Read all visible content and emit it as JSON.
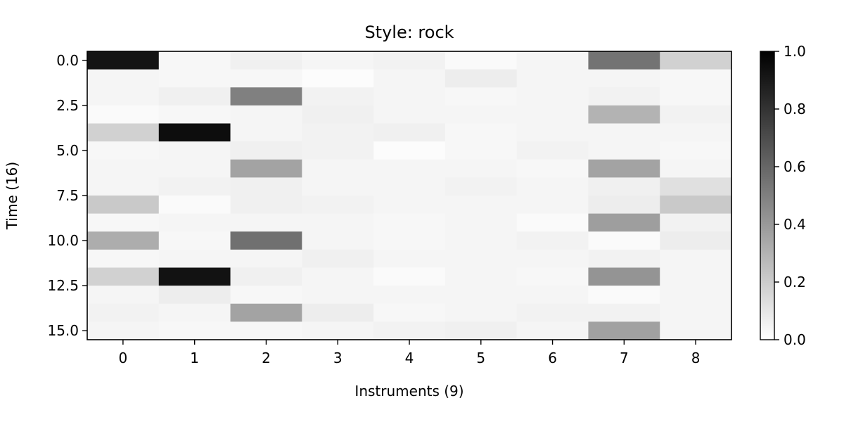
{
  "chart_data": {
    "type": "heatmap",
    "title": "Style: rock",
    "xlabel": "Instruments (9)",
    "ylabel": "Time (16)",
    "x_categories": [
      0,
      1,
      2,
      3,
      4,
      5,
      6,
      7,
      8
    ],
    "y_range": [
      -0.5,
      15.5
    ],
    "x_ticks": [
      "0",
      "1",
      "2",
      "3",
      "4",
      "5",
      "6",
      "7",
      "8"
    ],
    "y_ticks": [
      {
        "value": 0,
        "label": "0.0"
      },
      {
        "value": 2.5,
        "label": "2.5"
      },
      {
        "value": 5,
        "label": "5.0"
      },
      {
        "value": 7.5,
        "label": "7.5"
      },
      {
        "value": 10,
        "label": "10.0"
      },
      {
        "value": 12.5,
        "label": "12.5"
      },
      {
        "value": 15,
        "label": "15.0"
      }
    ],
    "colormap": "greys",
    "colorbar": {
      "range": [
        0.0,
        1.0
      ],
      "ticks": [
        {
          "value": 0.0,
          "label": "0.0"
        },
        {
          "value": 0.2,
          "label": "0.2"
        },
        {
          "value": 0.4,
          "label": "0.4"
        },
        {
          "value": 0.6,
          "label": "0.6"
        },
        {
          "value": 0.8,
          "label": "0.8"
        },
        {
          "value": 1.0,
          "label": "1.0"
        }
      ]
    },
    "values": [
      [
        0.92,
        0.03,
        0.06,
        0.04,
        0.05,
        0.02,
        0.04,
        0.55,
        0.18
      ],
      [
        0.04,
        0.03,
        0.03,
        0.01,
        0.04,
        0.07,
        0.04,
        0.04,
        0.03
      ],
      [
        0.04,
        0.06,
        0.5,
        0.05,
        0.04,
        0.03,
        0.04,
        0.05,
        0.03
      ],
      [
        0.02,
        0.03,
        0.04,
        0.06,
        0.04,
        0.04,
        0.04,
        0.3,
        0.05
      ],
      [
        0.18,
        0.95,
        0.04,
        0.05,
        0.06,
        0.03,
        0.04,
        0.04,
        0.04
      ],
      [
        0.03,
        0.04,
        0.06,
        0.05,
        0.01,
        0.03,
        0.05,
        0.04,
        0.03
      ],
      [
        0.04,
        0.04,
        0.36,
        0.04,
        0.04,
        0.04,
        0.03,
        0.36,
        0.04
      ],
      [
        0.04,
        0.05,
        0.06,
        0.04,
        0.04,
        0.05,
        0.04,
        0.06,
        0.12
      ],
      [
        0.21,
        0.02,
        0.06,
        0.05,
        0.04,
        0.04,
        0.04,
        0.07,
        0.21
      ],
      [
        0.03,
        0.04,
        0.04,
        0.04,
        0.03,
        0.04,
        0.02,
        0.38,
        0.05
      ],
      [
        0.32,
        0.03,
        0.56,
        0.04,
        0.03,
        0.04,
        0.05,
        0.02,
        0.07
      ],
      [
        0.03,
        0.04,
        0.04,
        0.06,
        0.04,
        0.04,
        0.04,
        0.05,
        0.04
      ],
      [
        0.18,
        0.93,
        0.06,
        0.04,
        0.02,
        0.04,
        0.03,
        0.42,
        0.04
      ],
      [
        0.04,
        0.07,
        0.03,
        0.04,
        0.04,
        0.04,
        0.04,
        0.02,
        0.04
      ],
      [
        0.05,
        0.04,
        0.36,
        0.07,
        0.03,
        0.04,
        0.05,
        0.05,
        0.04
      ],
      [
        0.04,
        0.03,
        0.03,
        0.04,
        0.05,
        0.06,
        0.04,
        0.37,
        0.04
      ]
    ]
  }
}
